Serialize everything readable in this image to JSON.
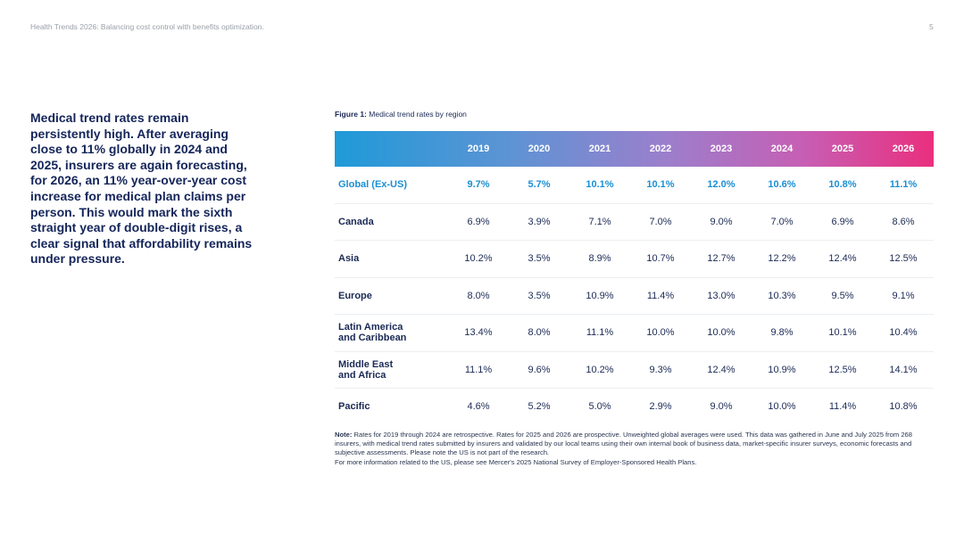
{
  "header": {
    "title": "Health Trends 2026: Balancing cost control with benefits optimization.",
    "page_number": "5"
  },
  "intro": {
    "text": "Medical trend rates remain persistently high. After averaging close to 11% globally in 2024 and 2025, insurers are again forecasting, for 2026, an 11% year-over-year cost increase for medical plan claims per person. This would mark the sixth straight year of double-digit rises, a clear signal that affordability remains under pressure."
  },
  "figure": {
    "label": "Figure 1:",
    "title": "Medical trend rates by region"
  },
  "table": {
    "years": [
      "2019",
      "2020",
      "2021",
      "2022",
      "2023",
      "2024",
      "2025",
      "2026"
    ],
    "rows": [
      {
        "region": "Global (Ex-US)",
        "values": [
          "9.7%",
          "5.7%",
          "10.1%",
          "10.1%",
          "12.0%",
          "10.6%",
          "10.8%",
          "11.1%"
        ]
      },
      {
        "region": "Canada",
        "values": [
          "6.9%",
          "3.9%",
          "7.1%",
          "7.0%",
          "9.0%",
          "7.0%",
          "6.9%",
          "8.6%"
        ]
      },
      {
        "region": "Asia",
        "values": [
          "10.2%",
          "3.5%",
          "8.9%",
          "10.7%",
          "12.7%",
          "12.2%",
          "12.4%",
          "12.5%"
        ]
      },
      {
        "region": "Europe",
        "values": [
          "8.0%",
          "3.5%",
          "10.9%",
          "11.4%",
          "13.0%",
          "10.3%",
          "9.5%",
          "9.1%"
        ]
      },
      {
        "region_line1": "Latin America",
        "region_line2": "and Caribbean",
        "values": [
          "13.4%",
          "8.0%",
          "11.1%",
          "10.0%",
          "10.0%",
          "9.8%",
          "10.1%",
          "10.4%"
        ]
      },
      {
        "region_line1": "Middle East",
        "region_line2": "and Africa",
        "values": [
          "11.1%",
          "9.6%",
          "10.2%",
          "9.3%",
          "12.4%",
          "10.9%",
          "12.5%",
          "14.1%"
        ]
      },
      {
        "region": "Pacific",
        "values": [
          "4.6%",
          "5.2%",
          "5.0%",
          "2.9%",
          "9.0%",
          "10.0%",
          "11.4%",
          "10.8%"
        ]
      }
    ]
  },
  "note": {
    "label": "Note:",
    "text": "Rates for 2019 through 2024 are retrospective. Rates for 2025 and 2026 are prospective. Unweighted global averages were used. This data was gathered in June and July 2025 from 268 insurers, with medical trend rates submitted by insurers and validated by our local teams using their own internal book of business data, market-specific insurer surveys, economic forecasts and subjective assessments. Please note the US is not part of the research.",
    "more": "For more information related to the US, please see Mercer's 2025 National Survey of Employer-Sponsored Health Plans."
  },
  "colors": {
    "heading_navy": "#14255a",
    "global_blue": "#1a8fd3",
    "gradient_start": "#1f9ad8",
    "gradient_end": "#ea2f7e"
  }
}
